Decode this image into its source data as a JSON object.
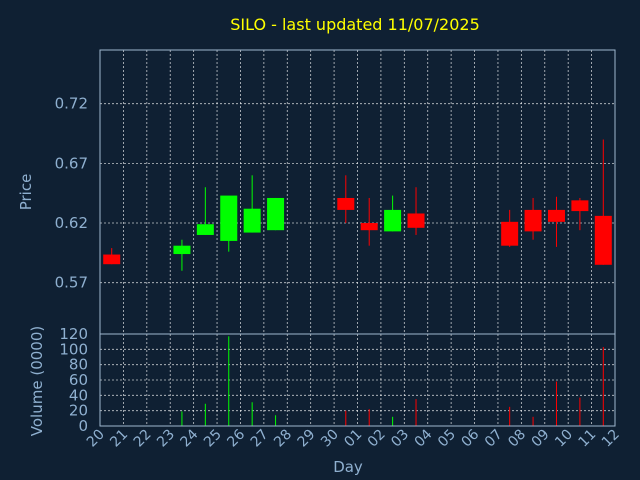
{
  "chart_data": {
    "type": "candlestick",
    "title": "SILO - last updated 11/07/2025",
    "xlabel": "Day",
    "colors": {
      "background": "#0f2033",
      "up": "#00ff00",
      "down": "#ff0000",
      "text": "#8fb0d0",
      "title": "#ffff00",
      "grid": "#ffffff"
    },
    "grid": true,
    "x_tick_labels": [
      "20",
      "21",
      "22",
      "23",
      "24",
      "25",
      "26",
      "27",
      "28",
      "29",
      "30",
      "01",
      "02",
      "03",
      "04",
      "05",
      "06",
      "07",
      "08",
      "09",
      "10",
      "11",
      "12"
    ],
    "price_panel": {
      "ylabel": "Price",
      "ylim": [
        0.527,
        0.765
      ],
      "y_ticks": [
        0.57,
        0.62,
        0.67,
        0.72
      ],
      "y_tick_labels": [
        "0.57",
        "0.62",
        "0.67",
        "0.72"
      ]
    },
    "volume_panel": {
      "ylabel": "Volume (0000)",
      "ylim": [
        0,
        120
      ],
      "y_ticks": [
        0,
        20,
        40,
        60,
        80,
        100,
        120
      ],
      "y_tick_labels": [
        "0",
        "20",
        "40",
        "60",
        "80",
        "100",
        "120"
      ]
    },
    "candles": [
      {
        "day": 0,
        "open": 0.5936,
        "high": 0.599,
        "low": 0.5855,
        "close": 0.5855,
        "volume": 0
      },
      {
        "day": 3,
        "open": 0.594,
        "high": 0.606,
        "low": 0.58,
        "close": 0.601,
        "volume": 19
      },
      {
        "day": 4,
        "open": 0.61,
        "high": 0.65,
        "low": 0.61,
        "close": 0.619,
        "volume": 29
      },
      {
        "day": 5,
        "open": 0.605,
        "high": 0.642,
        "low": 0.596,
        "close": 0.643,
        "volume": 117
      },
      {
        "day": 6,
        "open": 0.612,
        "high": 0.66,
        "low": 0.612,
        "close": 0.632,
        "volume": 31
      },
      {
        "day": 7,
        "open": 0.614,
        "high": 0.641,
        "low": 0.614,
        "close": 0.641,
        "volume": 14
      },
      {
        "day": 10,
        "open": 0.641,
        "high": 0.66,
        "low": 0.62,
        "close": 0.631,
        "volume": 20
      },
      {
        "day": 11,
        "open": 0.62,
        "high": 0.641,
        "low": 0.601,
        "close": 0.614,
        "volume": 22
      },
      {
        "day": 12,
        "open": 0.613,
        "high": 0.643,
        "low": 0.613,
        "close": 0.631,
        "volume": 12
      },
      {
        "day": 13,
        "open": 0.628,
        "high": 0.65,
        "low": 0.61,
        "close": 0.616,
        "volume": 35
      },
      {
        "day": 17,
        "open": 0.621,
        "high": 0.631,
        "low": 0.6,
        "close": 0.601,
        "volume": 25
      },
      {
        "day": 18,
        "open": 0.631,
        "high": 0.641,
        "low": 0.606,
        "close": 0.613,
        "volume": 12
      },
      {
        "day": 19,
        "open": 0.631,
        "high": 0.642,
        "low": 0.6,
        "close": 0.621,
        "volume": 58
      },
      {
        "day": 20,
        "open": 0.639,
        "high": 0.641,
        "low": 0.614,
        "close": 0.63,
        "volume": 37
      },
      {
        "day": 21,
        "open": 0.626,
        "high": 0.69,
        "low": 0.585,
        "close": 0.585,
        "volume": 103
      }
    ]
  }
}
